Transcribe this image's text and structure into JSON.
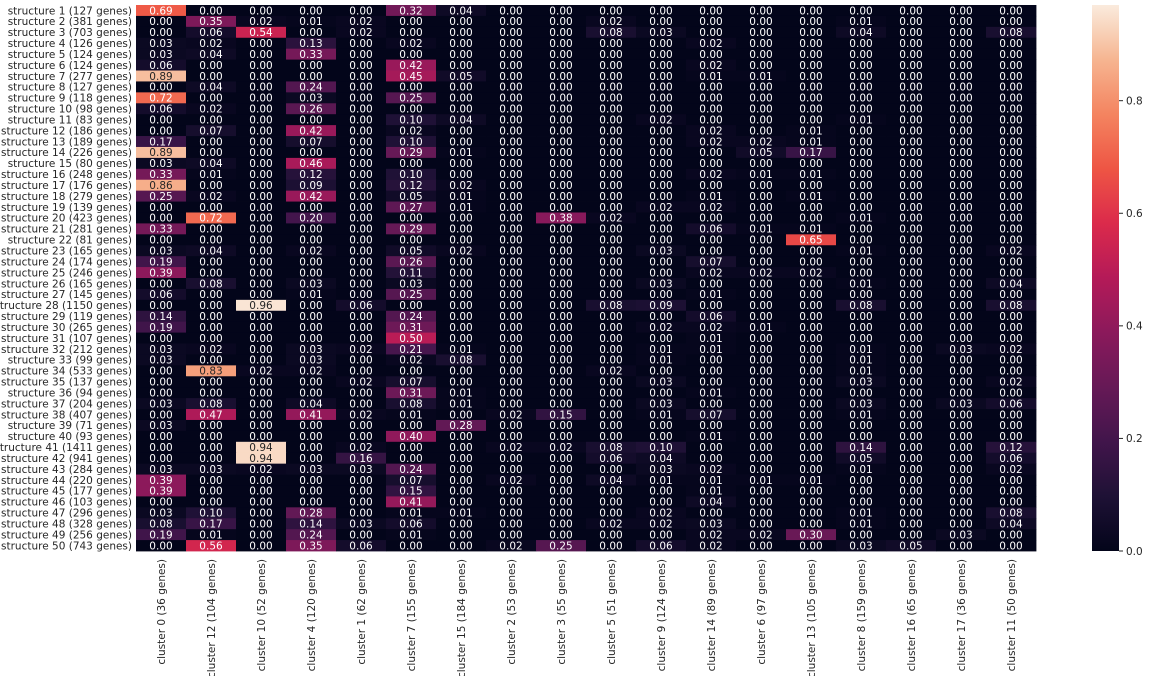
{
  "chart_data": {
    "type": "heatmap",
    "title": "",
    "xlabel": "",
    "ylabel": "",
    "rows": [
      "structure 1 (127 genes)",
      "structure 2 (381 genes)",
      "structure 3 (703 genes)",
      "structure 4 (126 genes)",
      "structure 5 (124 genes)",
      "structure 6 (124 genes)",
      "structure 7 (277 genes)",
      "structure 8 (127 genes)",
      "structure 9 (118 genes)",
      "structure 10 (98 genes)",
      "structure 11 (83 genes)",
      "structure 12 (186 genes)",
      "structure 13 (189 genes)",
      "structure 14 (226 genes)",
      "structure 15 (80 genes)",
      "structure 16 (248 genes)",
      "structure 17 (176 genes)",
      "structure 18 (279 genes)",
      "structure 19 (139 genes)",
      "structure 20 (423 genes)",
      "structure 21 (281 genes)",
      "structure 22 (81 genes)",
      "structure 23 (165 genes)",
      "structure 24 (174 genes)",
      "structure 25 (246 genes)",
      "structure 26 (165 genes)",
      "structure 27 (145 genes)",
      "structure 28 (1150 genes)",
      "structure 29 (119 genes)",
      "structure 30 (265 genes)",
      "structure 31 (107 genes)",
      "structure 32 (212 genes)",
      "structure 33 (99 genes)",
      "structure 34 (533 genes)",
      "structure 35 (137 genes)",
      "structure 36 (94 genes)",
      "structure 37 (204 genes)",
      "structure 38 (407 genes)",
      "structure 39 (71 genes)",
      "structure 40 (93 genes)",
      "structure 41 (1411 genes)",
      "structure 42 (941 genes)",
      "structure 43 (284 genes)",
      "structure 44 (220 genes)",
      "structure 45 (177 genes)",
      "structure 46 (103 genes)",
      "structure 47 (296 genes)",
      "structure 48 (328 genes)",
      "structure 49 (256 genes)",
      "structure 50 (743 genes)"
    ],
    "columns": [
      "cluster 0 (36 genes)",
      "cluster 12 (104 genes)",
      "cluster 10 (52 genes)",
      "cluster 4 (120 genes)",
      "cluster 1 (62 genes)",
      "cluster 7 (155 genes)",
      "cluster 15 (184 genes)",
      "cluster 2 (53 genes)",
      "cluster 3 (55 genes)",
      "cluster 5 (51 genes)",
      "cluster 9 (124 genes)",
      "cluster 14 (89 genes)",
      "cluster 6 (97 genes)",
      "cluster 13 (105 genes)",
      "cluster 8 (159 genes)",
      "cluster 16 (65 genes)",
      "cluster 17 (36 genes)",
      "cluster 11 (50 genes)"
    ],
    "values": [
      [
        0.69,
        0.0,
        0.0,
        0.0,
        0.0,
        0.32,
        0.04,
        0.0,
        0.0,
        0.0,
        0.0,
        0.0,
        0.0,
        0.0,
        0.0,
        0.0,
        0.0,
        0.0
      ],
      [
        0.0,
        0.35,
        0.02,
        0.01,
        0.02,
        0.0,
        0.0,
        0.0,
        0.0,
        0.02,
        0.0,
        0.0,
        0.0,
        0.0,
        0.01,
        0.0,
        0.0,
        0.0
      ],
      [
        0.0,
        0.06,
        0.54,
        0.0,
        0.02,
        0.0,
        0.0,
        0.0,
        0.0,
        0.08,
        0.03,
        0.0,
        0.0,
        0.0,
        0.04,
        0.0,
        0.0,
        0.08
      ],
      [
        0.03,
        0.02,
        0.0,
        0.13,
        0.0,
        0.02,
        0.0,
        0.0,
        0.0,
        0.0,
        0.0,
        0.02,
        0.0,
        0.0,
        0.0,
        0.0,
        0.0,
        0.0
      ],
      [
        0.03,
        0.04,
        0.0,
        0.33,
        0.0,
        0.0,
        0.0,
        0.0,
        0.0,
        0.0,
        0.0,
        0.0,
        0.0,
        0.0,
        0.0,
        0.0,
        0.0,
        0.0
      ],
      [
        0.06,
        0.0,
        0.0,
        0.0,
        0.0,
        0.42,
        0.0,
        0.0,
        0.0,
        0.0,
        0.0,
        0.02,
        0.0,
        0.0,
        0.0,
        0.0,
        0.0,
        0.0
      ],
      [
        0.89,
        0.0,
        0.0,
        0.0,
        0.0,
        0.45,
        0.05,
        0.0,
        0.0,
        0.0,
        0.0,
        0.01,
        0.01,
        0.0,
        0.0,
        0.0,
        0.0,
        0.0
      ],
      [
        0.0,
        0.04,
        0.0,
        0.24,
        0.0,
        0.0,
        0.0,
        0.0,
        0.0,
        0.0,
        0.0,
        0.0,
        0.0,
        0.0,
        0.0,
        0.0,
        0.0,
        0.0
      ],
      [
        0.72,
        0.0,
        0.0,
        0.03,
        0.0,
        0.25,
        0.0,
        0.0,
        0.0,
        0.0,
        0.0,
        0.0,
        0.0,
        0.0,
        0.0,
        0.0,
        0.0,
        0.0
      ],
      [
        0.06,
        0.02,
        0.0,
        0.26,
        0.0,
        0.0,
        0.0,
        0.0,
        0.0,
        0.0,
        0.0,
        0.0,
        0.0,
        0.0,
        0.0,
        0.0,
        0.0,
        0.0
      ],
      [
        0.0,
        0.0,
        0.0,
        0.0,
        0.0,
        0.1,
        0.04,
        0.0,
        0.0,
        0.0,
        0.02,
        0.0,
        0.0,
        0.0,
        0.01,
        0.0,
        0.0,
        0.0
      ],
      [
        0.0,
        0.07,
        0.0,
        0.42,
        0.0,
        0.02,
        0.0,
        0.0,
        0.0,
        0.0,
        0.0,
        0.02,
        0.0,
        0.01,
        0.0,
        0.0,
        0.0,
        0.0
      ],
      [
        0.17,
        0.0,
        0.0,
        0.07,
        0.0,
        0.1,
        0.0,
        0.0,
        0.0,
        0.0,
        0.0,
        0.02,
        0.02,
        0.01,
        0.0,
        0.0,
        0.0,
        0.0
      ],
      [
        0.89,
        0.0,
        0.0,
        0.0,
        0.0,
        0.29,
        0.01,
        0.0,
        0.0,
        0.0,
        0.0,
        0.0,
        0.05,
        0.17,
        0.0,
        0.0,
        0.0,
        0.0
      ],
      [
        0.03,
        0.04,
        0.0,
        0.46,
        0.0,
        0.0,
        0.0,
        0.0,
        0.0,
        0.0,
        0.0,
        0.0,
        0.0,
        0.0,
        0.0,
        0.0,
        0.0,
        0.0
      ],
      [
        0.33,
        0.01,
        0.0,
        0.12,
        0.0,
        0.1,
        0.0,
        0.0,
        0.0,
        0.0,
        0.0,
        0.02,
        0.01,
        0.01,
        0.0,
        0.0,
        0.0,
        0.0
      ],
      [
        0.86,
        0.0,
        0.0,
        0.09,
        0.0,
        0.12,
        0.02,
        0.0,
        0.0,
        0.0,
        0.0,
        0.0,
        0.0,
        0.0,
        0.0,
        0.0,
        0.0,
        0.0
      ],
      [
        0.25,
        0.02,
        0.0,
        0.42,
        0.0,
        0.05,
        0.01,
        0.0,
        0.0,
        0.0,
        0.0,
        0.01,
        0.0,
        0.01,
        0.0,
        0.0,
        0.0,
        0.0
      ],
      [
        0.0,
        0.0,
        0.0,
        0.0,
        0.0,
        0.27,
        0.01,
        0.0,
        0.0,
        0.0,
        0.02,
        0.02,
        0.0,
        0.0,
        0.0,
        0.0,
        0.0,
        0.0
      ],
      [
        0.0,
        0.72,
        0.0,
        0.2,
        0.0,
        0.0,
        0.0,
        0.0,
        0.38,
        0.02,
        0.0,
        0.0,
        0.0,
        0.0,
        0.01,
        0.0,
        0.0,
        0.0
      ],
      [
        0.33,
        0.0,
        0.0,
        0.0,
        0.0,
        0.29,
        0.0,
        0.0,
        0.0,
        0.0,
        0.0,
        0.06,
        0.01,
        0.01,
        0.0,
        0.0,
        0.0,
        0.0
      ],
      [
        0.0,
        0.0,
        0.0,
        0.0,
        0.0,
        0.0,
        0.0,
        0.0,
        0.0,
        0.0,
        0.0,
        0.0,
        0.0,
        0.65,
        0.0,
        0.0,
        0.0,
        0.0
      ],
      [
        0.03,
        0.04,
        0.0,
        0.02,
        0.0,
        0.05,
        0.02,
        0.0,
        0.0,
        0.0,
        0.03,
        0.0,
        0.0,
        0.0,
        0.01,
        0.0,
        0.0,
        0.02
      ],
      [
        0.19,
        0.0,
        0.0,
        0.0,
        0.0,
        0.26,
        0.0,
        0.0,
        0.0,
        0.0,
        0.0,
        0.07,
        0.0,
        0.0,
        0.0,
        0.0,
        0.0,
        0.0
      ],
      [
        0.39,
        0.0,
        0.0,
        0.0,
        0.0,
        0.11,
        0.0,
        0.0,
        0.0,
        0.0,
        0.0,
        0.02,
        0.02,
        0.02,
        0.0,
        0.0,
        0.0,
        0.0
      ],
      [
        0.0,
        0.08,
        0.0,
        0.03,
        0.0,
        0.03,
        0.0,
        0.0,
        0.0,
        0.0,
        0.03,
        0.0,
        0.0,
        0.0,
        0.01,
        0.0,
        0.0,
        0.04
      ],
      [
        0.06,
        0.0,
        0.0,
        0.01,
        0.0,
        0.25,
        0.0,
        0.0,
        0.0,
        0.0,
        0.0,
        0.01,
        0.0,
        0.0,
        0.0,
        0.0,
        0.0,
        0.0
      ],
      [
        0.0,
        0.0,
        0.96,
        0.0,
        0.06,
        0.0,
        0.0,
        0.0,
        0.0,
        0.08,
        0.09,
        0.0,
        0.0,
        0.0,
        0.08,
        0.0,
        0.0,
        0.08
      ],
      [
        0.14,
        0.0,
        0.0,
        0.0,
        0.0,
        0.24,
        0.0,
        0.0,
        0.0,
        0.0,
        0.0,
        0.06,
        0.0,
        0.0,
        0.0,
        0.0,
        0.0,
        0.0
      ],
      [
        0.19,
        0.0,
        0.0,
        0.0,
        0.0,
        0.31,
        0.0,
        0.0,
        0.0,
        0.0,
        0.02,
        0.02,
        0.01,
        0.0,
        0.0,
        0.0,
        0.0,
        0.0
      ],
      [
        0.0,
        0.0,
        0.0,
        0.0,
        0.0,
        0.5,
        0.0,
        0.0,
        0.0,
        0.0,
        0.0,
        0.01,
        0.0,
        0.0,
        0.0,
        0.0,
        0.0,
        0.0
      ],
      [
        0.03,
        0.02,
        0.0,
        0.03,
        0.02,
        0.21,
        0.01,
        0.0,
        0.0,
        0.0,
        0.01,
        0.01,
        0.0,
        0.0,
        0.01,
        0.0,
        0.03,
        0.02
      ],
      [
        0.03,
        0.0,
        0.0,
        0.03,
        0.0,
        0.02,
        0.08,
        0.0,
        0.0,
        0.0,
        0.01,
        0.0,
        0.0,
        0.0,
        0.01,
        0.0,
        0.0,
        0.0
      ],
      [
        0.0,
        0.83,
        0.02,
        0.02,
        0.0,
        0.0,
        0.0,
        0.0,
        0.0,
        0.02,
        0.0,
        0.0,
        0.0,
        0.0,
        0.01,
        0.0,
        0.0,
        0.0
      ],
      [
        0.0,
        0.0,
        0.0,
        0.0,
        0.02,
        0.07,
        0.0,
        0.0,
        0.0,
        0.0,
        0.03,
        0.0,
        0.0,
        0.0,
        0.03,
        0.0,
        0.0,
        0.02
      ],
      [
        0.0,
        0.0,
        0.0,
        0.0,
        0.0,
        0.31,
        0.01,
        0.0,
        0.0,
        0.0,
        0.0,
        0.01,
        0.0,
        0.0,
        0.0,
        0.0,
        0.0,
        0.0
      ],
      [
        0.03,
        0.08,
        0.0,
        0.04,
        0.0,
        0.08,
        0.01,
        0.0,
        0.0,
        0.0,
        0.03,
        0.0,
        0.0,
        0.0,
        0.03,
        0.0,
        0.03,
        0.06
      ],
      [
        0.0,
        0.47,
        0.0,
        0.41,
        0.02,
        0.01,
        0.0,
        0.02,
        0.15,
        0.0,
        0.01,
        0.07,
        0.0,
        0.0,
        0.01,
        0.0,
        0.0,
        0.0
      ],
      [
        0.03,
        0.0,
        0.0,
        0.0,
        0.0,
        0.0,
        0.28,
        0.0,
        0.0,
        0.0,
        0.0,
        0.0,
        0.0,
        0.0,
        0.0,
        0.0,
        0.0,
        0.0
      ],
      [
        0.0,
        0.0,
        0.0,
        0.0,
        0.0,
        0.4,
        0.0,
        0.0,
        0.0,
        0.0,
        0.0,
        0.01,
        0.0,
        0.0,
        0.0,
        0.0,
        0.0,
        0.0
      ],
      [
        0.0,
        0.0,
        0.94,
        0.0,
        0.02,
        0.0,
        0.0,
        0.02,
        0.02,
        0.08,
        0.1,
        0.0,
        0.0,
        0.0,
        0.14,
        0.0,
        0.0,
        0.12
      ],
      [
        0.0,
        0.0,
        0.94,
        0.0,
        0.16,
        0.0,
        0.0,
        0.0,
        0.0,
        0.06,
        0.04,
        0.0,
        0.0,
        0.0,
        0.05,
        0.0,
        0.0,
        0.06
      ],
      [
        0.03,
        0.03,
        0.02,
        0.03,
        0.03,
        0.24,
        0.0,
        0.0,
        0.0,
        0.0,
        0.03,
        0.02,
        0.0,
        0.0,
        0.01,
        0.0,
        0.0,
        0.02
      ],
      [
        0.39,
        0.0,
        0.0,
        0.0,
        0.0,
        0.07,
        0.0,
        0.02,
        0.0,
        0.04,
        0.01,
        0.01,
        0.01,
        0.01,
        0.0,
        0.0,
        0.0,
        0.0
      ],
      [
        0.39,
        0.0,
        0.0,
        0.0,
        0.0,
        0.15,
        0.0,
        0.0,
        0.0,
        0.0,
        0.0,
        0.01,
        0.0,
        0.0,
        0.0,
        0.0,
        0.0,
        0.0
      ],
      [
        0.0,
        0.0,
        0.0,
        0.0,
        0.0,
        0.41,
        0.0,
        0.0,
        0.0,
        0.0,
        0.0,
        0.04,
        0.0,
        0.0,
        0.0,
        0.0,
        0.0,
        0.0
      ],
      [
        0.03,
        0.1,
        0.0,
        0.28,
        0.0,
        0.01,
        0.01,
        0.0,
        0.0,
        0.0,
        0.02,
        0.0,
        0.0,
        0.0,
        0.01,
        0.0,
        0.0,
        0.08
      ],
      [
        0.08,
        0.17,
        0.0,
        0.14,
        0.03,
        0.06,
        0.0,
        0.0,
        0.0,
        0.02,
        0.02,
        0.03,
        0.0,
        0.0,
        0.01,
        0.0,
        0.0,
        0.04
      ],
      [
        0.19,
        0.01,
        0.0,
        0.24,
        0.0,
        0.01,
        0.0,
        0.0,
        0.0,
        0.0,
        0.0,
        0.02,
        0.02,
        0.3,
        0.0,
        0.0,
        0.03,
        0.0
      ],
      [
        0.0,
        0.56,
        0.0,
        0.35,
        0.06,
        0.0,
        0.0,
        0.02,
        0.25,
        0.0,
        0.06,
        0.02,
        0.0,
        0.0,
        0.03,
        0.05,
        0.0,
        0.0
      ]
    ],
    "colorbar": {
      "range": [
        0,
        0.97
      ],
      "ticks": [
        "0.0",
        "0.2",
        "0.4",
        "0.6",
        "0.8"
      ],
      "tick_values": [
        0,
        0.2,
        0.4,
        0.6,
        0.8
      ],
      "colormap": "rocket",
      "placement": "right"
    },
    "grid": false
  }
}
